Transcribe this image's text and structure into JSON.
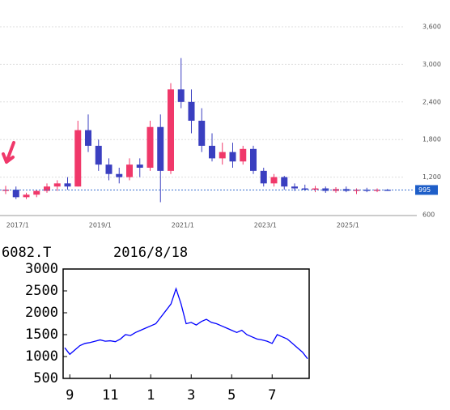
{
  "chart_data": [
    {
      "type": "candlestick",
      "categories": [
        null,
        "2017/1",
        null,
        null,
        null,
        null,
        null,
        null,
        null,
        "2019/1",
        null,
        null,
        null,
        null,
        null,
        null,
        null,
        "2021/1",
        null,
        null,
        null,
        null,
        null,
        null,
        null,
        "2023/1",
        null,
        null,
        null,
        null,
        null,
        null,
        null,
        "2025/1",
        null,
        null,
        null,
        null
      ],
      "open": [
        1000,
        1000,
        880,
        920,
        980,
        1050,
        1100,
        1050,
        1950,
        1700,
        1400,
        1250,
        1200,
        1400,
        1350,
        2000,
        1300,
        2600,
        2400,
        2100,
        1700,
        1500,
        1600,
        1450,
        1650,
        1300,
        1100,
        1200,
        1050,
        1020,
        1000,
        1020,
        980,
        1010,
        980,
        1000,
        990,
        1000
      ],
      "high": [
        1060,
        1050,
        950,
        1000,
        1100,
        1150,
        1200,
        2100,
        2200,
        1800,
        1500,
        1350,
        1500,
        1500,
        2100,
        2200,
        2700,
        3100,
        2600,
        2300,
        1900,
        1750,
        1750,
        1700,
        1700,
        1350,
        1250,
        1220,
        1100,
        1080,
        1060,
        1050,
        1040,
        1050,
        1020,
        1030,
        1020,
        1010
      ],
      "low": [
        930,
        850,
        850,
        880,
        950,
        980,
        1000,
        1050,
        1600,
        1300,
        1150,
        1100,
        1150,
        1200,
        1300,
        800,
        1250,
        2300,
        1900,
        1600,
        1450,
        1400,
        1350,
        1400,
        1250,
        1050,
        1050,
        1000,
        980,
        980,
        960,
        950,
        950,
        960,
        930,
        960,
        960,
        980
      ],
      "close": [
        1000,
        880,
        920,
        980,
        1050,
        1100,
        1050,
        1950,
        1700,
        1400,
        1250,
        1200,
        1400,
        1350,
        2000,
        1300,
        2600,
        2400,
        2100,
        1700,
        1500,
        1600,
        1450,
        1650,
        1300,
        1100,
        1200,
        1050,
        1020,
        1000,
        1020,
        980,
        1010,
        980,
        1000,
        990,
        1000,
        995
      ],
      "up_color": "#f0386a",
      "down_color": "#3a3fc0",
      "last": 995,
      "ylim": [
        600,
        3600
      ],
      "yticks": [
        600,
        {
          "value": 1200,
          "label": "1,200"
        },
        {
          "value": 1800,
          "label": "1,800"
        },
        {
          "value": 2400,
          "label": "2,400"
        },
        {
          "value": 3000,
          "label": "3,000"
        },
        {
          "value": 3600,
          "label": "3,600"
        }
      ],
      "grid": true
    },
    {
      "type": "line",
      "title": "6082.T",
      "subtitle": "2016/8/18",
      "categories": [
        null,
        "9",
        null,
        null,
        null,
        null,
        null,
        null,
        null,
        "11",
        null,
        null,
        null,
        null,
        null,
        null,
        null,
        "1",
        null,
        null,
        null,
        null,
        null,
        null,
        null,
        "3",
        null,
        null,
        null,
        null,
        null,
        null,
        null,
        "5",
        null,
        null,
        null,
        null,
        null,
        null,
        null,
        "7",
        null,
        null,
        null,
        null,
        null,
        null,
        null
      ],
      "values": [
        1200,
        1050,
        1150,
        1250,
        1300,
        1320,
        1350,
        1380,
        1350,
        1360,
        1340,
        1400,
        1500,
        1480,
        1550,
        1600,
        1650,
        1700,
        1750,
        1900,
        2050,
        2200,
        2550,
        2200,
        1750,
        1780,
        1720,
        1800,
        1850,
        1780,
        1750,
        1700,
        1650,
        1600,
        1550,
        1600,
        1500,
        1450,
        1400,
        1380,
        1350,
        1300,
        1500,
        1450,
        1400,
        1300,
        1200,
        1100,
        950
      ],
      "color": "#0000ff",
      "ylim": [
        500,
        3000
      ],
      "yticks": [
        500,
        1000,
        1500,
        2000,
        2500,
        3000
      ]
    }
  ]
}
